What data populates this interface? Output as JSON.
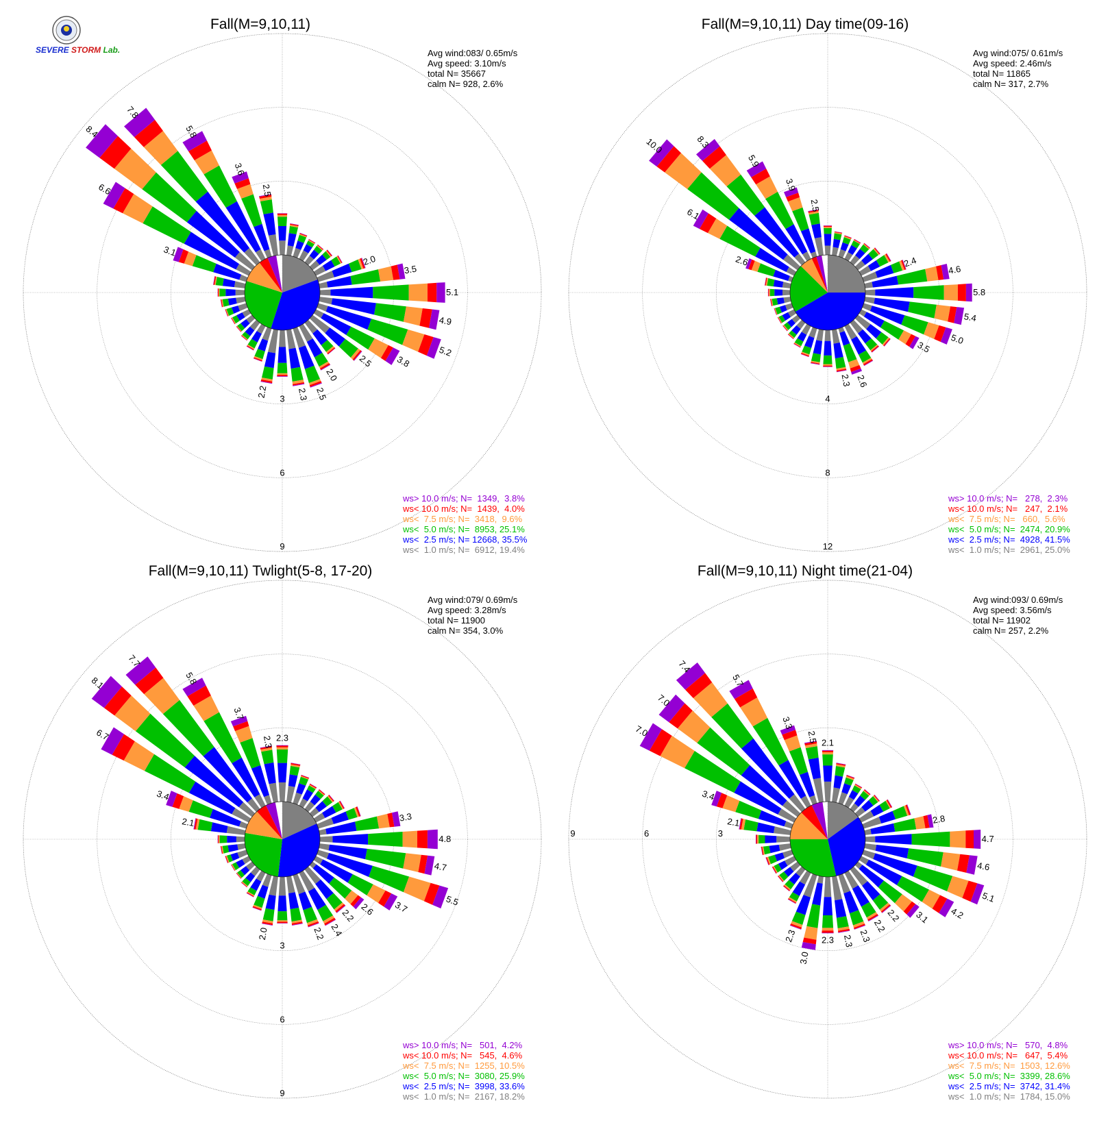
{
  "logo": {
    "word1": "SEVERE",
    "word2": "STORM",
    "word3": "Lab."
  },
  "legend_colors": {
    "gt10": "#9400d3",
    "lt10": "#ff0000",
    "lt7_5": "#ff9a3c",
    "lt5": "#00c000",
    "lt2_5": "#0000ff",
    "lt1": "#808080"
  },
  "chart_data": [
    {
      "type": "windrose",
      "title": "Fall(M=9,10,11)",
      "stats": [
        "Avg wind:083/ 0.65m/s",
        "Avg speed: 3.10m/s",
        "total N=     35667",
        "calm N=    928,   2.6%"
      ],
      "ring_labels": [
        "3",
        "6",
        "9"
      ],
      "ring_values": [
        3,
        6,
        9
      ],
      "legend": [
        {
          "key": "gt10",
          "text": "ws> 10.0 m/s; N=  1349,  3.8%"
        },
        {
          "key": "lt10",
          "text": "ws< 10.0 m/s; N=  1439,  4.0%"
        },
        {
          "key": "lt7_5",
          "text": "ws<  7.5 m/s; N=  3418,  9.6%"
        },
        {
          "key": "lt5",
          "text": "ws<  5.0 m/s; N=  8953, 25.1%"
        },
        {
          "key": "lt2_5",
          "text": "ws<  2.5 m/s; N= 12668, 35.5%"
        },
        {
          "key": "lt1",
          "text": "ws<  1.0 m/s; N=  6912, 19.4%"
        }
      ],
      "pie": [
        19.4,
        35.5,
        25.1,
        9.6,
        4.0,
        3.8
      ],
      "bars": [
        {
          "dir": 90,
          "total": 5.1,
          "label": "5.1"
        },
        {
          "dir": 100,
          "total": 4.9,
          "label": "4.9"
        },
        {
          "dir": 110,
          "total": 5.2,
          "label": "5.2"
        },
        {
          "dir": 120,
          "total": 3.8,
          "label": "3.8"
        },
        {
          "dir": 130,
          "total": 2.5,
          "label": "2.5"
        },
        {
          "dir": 140,
          "total": 1.6
        },
        {
          "dir": 150,
          "total": 2.0,
          "label": "2.0"
        },
        {
          "dir": 160,
          "total": 2.5,
          "label": "2.5"
        },
        {
          "dir": 170,
          "total": 2.3,
          "label": "2.3"
        },
        {
          "dir": 180,
          "total": 1.9
        },
        {
          "dir": 190,
          "total": 2.2,
          "label": "2.2"
        },
        {
          "dir": 200,
          "total": 1.4
        },
        {
          "dir": 210,
          "total": 1.1
        },
        {
          "dir": 220,
          "total": 0.9
        },
        {
          "dir": 230,
          "total": 0.8
        },
        {
          "dir": 240,
          "total": 0.8
        },
        {
          "dir": 250,
          "total": 0.9
        },
        {
          "dir": 260,
          "total": 1.0
        },
        {
          "dir": 270,
          "total": 1.1
        },
        {
          "dir": 280,
          "total": 1.3
        },
        {
          "dir": 290,
          "total": 3.1,
          "label": "3.1"
        },
        {
          "dir": 300,
          "total": 6.6,
          "label": "6.6"
        },
        {
          "dir": 310,
          "total": 8.4,
          "label": "8.4"
        },
        {
          "dir": 320,
          "total": 7.8,
          "label": "7.8"
        },
        {
          "dir": 330,
          "total": 5.8,
          "label": "5.8"
        },
        {
          "dir": 340,
          "total": 3.6,
          "label": "3.6"
        },
        {
          "dir": 350,
          "total": 2.5,
          "label": "2.5"
        },
        {
          "dir": 0,
          "total": 1.7
        },
        {
          "dir": 10,
          "total": 1.3
        },
        {
          "dir": 20,
          "total": 1.0
        },
        {
          "dir": 30,
          "total": 0.9
        },
        {
          "dir": 40,
          "total": 0.9
        },
        {
          "dir": 50,
          "total": 1.0
        },
        {
          "dir": 60,
          "total": 1.2
        },
        {
          "dir": 70,
          "total": 2.0,
          "label": "2.0"
        },
        {
          "dir": 80,
          "total": 3.5,
          "label": "3.5"
        }
      ]
    },
    {
      "type": "windrose",
      "title": "Fall(M=9,10,11) Day time(09-16)",
      "stats": [
        "Avg wind:075/ 0.61m/s",
        "Avg speed: 2.46m/s",
        "total N=     11865",
        "calm N=    317,   2.7%"
      ],
      "ring_labels": [
        "4",
        "8",
        "12"
      ],
      "ring_values": [
        4,
        8,
        12
      ],
      "legend": [
        {
          "key": "gt10",
          "text": "ws> 10.0 m/s; N=   278,  2.3%"
        },
        {
          "key": "lt10",
          "text": "ws< 10.0 m/s; N=   247,  2.1%"
        },
        {
          "key": "lt7_5",
          "text": "ws<  7.5 m/s; N=   660,  5.6%"
        },
        {
          "key": "lt5",
          "text": "ws<  5.0 m/s; N=  2474, 20.9%"
        },
        {
          "key": "lt2_5",
          "text": "ws<  2.5 m/s; N=  4928, 41.5%"
        },
        {
          "key": "lt1",
          "text": "ws<  1.0 m/s; N=  2961, 25.0%"
        }
      ],
      "pie": [
        25.0,
        41.5,
        20.9,
        5.6,
        2.1,
        2.3
      ],
      "bars": [
        {
          "dir": 90,
          "total": 5.8,
          "label": "5.8"
        },
        {
          "dir": 100,
          "total": 5.4,
          "label": "5.4"
        },
        {
          "dir": 110,
          "total": 5.0,
          "label": "5.0"
        },
        {
          "dir": 120,
          "total": 3.5,
          "label": "3.5"
        },
        {
          "dir": 130,
          "total": 2.2
        },
        {
          "dir": 140,
          "total": 2.0
        },
        {
          "dir": 150,
          "total": 2.4
        },
        {
          "dir": 160,
          "total": 2.6,
          "label": "2.6"
        },
        {
          "dir": 170,
          "total": 2.3,
          "label": "2.3"
        },
        {
          "dir": 180,
          "total": 2.0
        },
        {
          "dir": 190,
          "total": 1.9
        },
        {
          "dir": 200,
          "total": 1.6
        },
        {
          "dir": 210,
          "total": 1.3
        },
        {
          "dir": 220,
          "total": 1.1
        },
        {
          "dir": 230,
          "total": 1.0
        },
        {
          "dir": 240,
          "total": 1.0
        },
        {
          "dir": 250,
          "total": 1.0
        },
        {
          "dir": 260,
          "total": 1.1
        },
        {
          "dir": 270,
          "total": 1.2
        },
        {
          "dir": 280,
          "total": 1.4
        },
        {
          "dir": 290,
          "total": 2.6,
          "label": "2.6"
        },
        {
          "dir": 300,
          "total": 6.1,
          "label": "6.1"
        },
        {
          "dir": 310,
          "total": 10.0,
          "label": "10.0"
        },
        {
          "dir": 320,
          "total": 8.3,
          "label": "8.3"
        },
        {
          "dir": 330,
          "total": 5.9,
          "label": "5.9"
        },
        {
          "dir": 340,
          "total": 3.9,
          "label": "3.9"
        },
        {
          "dir": 350,
          "total": 2.5,
          "label": "2.5"
        },
        {
          "dir": 0,
          "total": 1.6
        },
        {
          "dir": 10,
          "total": 1.3
        },
        {
          "dir": 20,
          "total": 1.2
        },
        {
          "dir": 30,
          "total": 1.2
        },
        {
          "dir": 40,
          "total": 1.3
        },
        {
          "dir": 50,
          "total": 1.5
        },
        {
          "dir": 60,
          "total": 1.8
        },
        {
          "dir": 70,
          "total": 2.4,
          "label": "2.4"
        },
        {
          "dir": 80,
          "total": 4.6,
          "label": "4.6"
        }
      ]
    },
    {
      "type": "windrose",
      "title": "Fall(M=9,10,11) Twlight(5-8, 17-20)",
      "stats": [
        "Avg wind:079/ 0.69m/s",
        "Avg speed: 3.28m/s",
        "total N=     11900",
        "calm N=    354,   3.0%"
      ],
      "ring_labels": [
        "3",
        "6",
        "9"
      ],
      "ring_values": [
        3,
        6,
        9
      ],
      "legend": [
        {
          "key": "gt10",
          "text": "ws> 10.0 m/s; N=   501,  4.2%"
        },
        {
          "key": "lt10",
          "text": "ws< 10.0 m/s; N=   545,  4.6%"
        },
        {
          "key": "lt7_5",
          "text": "ws<  7.5 m/s; N=  1255, 10.5%"
        },
        {
          "key": "lt5",
          "text": "ws<  5.0 m/s; N=  3080, 25.9%"
        },
        {
          "key": "lt2_5",
          "text": "ws<  2.5 m/s; N=  3998, 33.6%"
        },
        {
          "key": "lt1",
          "text": "ws<  1.0 m/s; N=  2167, 18.2%"
        }
      ],
      "pie": [
        18.2,
        33.6,
        25.9,
        10.5,
        4.6,
        4.2
      ],
      "bars": [
        {
          "dir": 90,
          "total": 4.8,
          "label": "4.8"
        },
        {
          "dir": 100,
          "total": 4.7,
          "label": "4.7"
        },
        {
          "dir": 110,
          "total": 5.5,
          "label": "5.5"
        },
        {
          "dir": 120,
          "total": 3.7,
          "label": "3.7"
        },
        {
          "dir": 130,
          "total": 2.6,
          "label": "2.6"
        },
        {
          "dir": 140,
          "total": 2.2,
          "label": "2.2"
        },
        {
          "dir": 150,
          "total": 2.4,
          "label": "2.4"
        },
        {
          "dir": 160,
          "total": 2.2,
          "label": "2.2"
        },
        {
          "dir": 170,
          "total": 2.0
        },
        {
          "dir": 180,
          "total": 1.9
        },
        {
          "dir": 190,
          "total": 2.0,
          "label": "2.0"
        },
        {
          "dir": 200,
          "total": 1.5
        },
        {
          "dir": 210,
          "total": 1.1
        },
        {
          "dir": 220,
          "total": 0.9
        },
        {
          "dir": 230,
          "total": 0.8
        },
        {
          "dir": 240,
          "total": 0.8
        },
        {
          "dir": 250,
          "total": 0.9
        },
        {
          "dir": 260,
          "total": 1.0
        },
        {
          "dir": 270,
          "total": 1.1
        },
        {
          "dir": 280,
          "total": 2.1,
          "label": "2.1"
        },
        {
          "dir": 290,
          "total": 3.4,
          "label": "3.4"
        },
        {
          "dir": 300,
          "total": 6.7,
          "label": "6.7"
        },
        {
          "dir": 310,
          "total": 8.1,
          "label": "8.1"
        },
        {
          "dir": 320,
          "total": 7.7,
          "label": "7.7"
        },
        {
          "dir": 330,
          "total": 5.8,
          "label": "5.8"
        },
        {
          "dir": 340,
          "total": 3.7,
          "label": "3.7"
        },
        {
          "dir": 350,
          "total": 2.3,
          "label": "2.3"
        },
        {
          "dir": 0,
          "total": 2.3,
          "label": "2.3"
        },
        {
          "dir": 10,
          "total": 1.6
        },
        {
          "dir": 20,
          "total": 1.2
        },
        {
          "dir": 30,
          "total": 1.0
        },
        {
          "dir": 40,
          "total": 1.0
        },
        {
          "dir": 50,
          "total": 1.1
        },
        {
          "dir": 60,
          "total": 1.3
        },
        {
          "dir": 70,
          "total": 1.8
        },
        {
          "dir": 80,
          "total": 3.3,
          "label": "3.3"
        }
      ]
    },
    {
      "type": "windrose",
      "title": "Fall(M=9,10,11) Night time(21-04)",
      "stats": [
        "Avg wind:093/ 0.69m/s",
        "Avg speed: 3.56m/s",
        "total N=     11902",
        "calm N=    257,   2.2%"
      ],
      "ring_labels": [
        "3",
        "6",
        "9"
      ],
      "ring_values": [
        3,
        6,
        9
      ],
      "ring_labels_side": "left",
      "legend": [
        {
          "key": "gt10",
          "text": "ws> 10.0 m/s; N=   570,  4.8%"
        },
        {
          "key": "lt10",
          "text": "ws< 10.0 m/s; N=   647,  5.4%"
        },
        {
          "key": "lt7_5",
          "text": "ws<  7.5 m/s; N=  1503, 12.6%"
        },
        {
          "key": "lt5",
          "text": "ws<  5.0 m/s; N=  3399, 28.6%"
        },
        {
          "key": "lt2_5",
          "text": "ws<  2.5 m/s; N=  3742, 31.4%"
        },
        {
          "key": "lt1",
          "text": "ws<  1.0 m/s; N=  1784, 15.0%"
        }
      ],
      "pie": [
        15.0,
        31.4,
        28.6,
        12.6,
        5.4,
        4.8
      ],
      "bars": [
        {
          "dir": 90,
          "total": 4.7,
          "label": "4.7"
        },
        {
          "dir": 100,
          "total": 4.6,
          "label": "4.6"
        },
        {
          "dir": 110,
          "total": 5.1,
          "label": "5.1"
        },
        {
          "dir": 120,
          "total": 4.2,
          "label": "4.2"
        },
        {
          "dir": 130,
          "total": 3.1,
          "label": "3.1"
        },
        {
          "dir": 140,
          "total": 2.2,
          "label": "2.2"
        },
        {
          "dir": 150,
          "total": 2.2,
          "label": "2.2"
        },
        {
          "dir": 160,
          "total": 2.3,
          "label": "2.3"
        },
        {
          "dir": 170,
          "total": 2.3,
          "label": "2.3"
        },
        {
          "dir": 180,
          "total": 2.3,
          "label": "2.3"
        },
        {
          "dir": 190,
          "total": 3.0,
          "label": "3.0"
        },
        {
          "dir": 200,
          "total": 2.3,
          "label": "2.3"
        },
        {
          "dir": 210,
          "total": 1.4
        },
        {
          "dir": 220,
          "total": 1.1
        },
        {
          "dir": 230,
          "total": 1.0
        },
        {
          "dir": 240,
          "total": 1.0
        },
        {
          "dir": 250,
          "total": 1.1
        },
        {
          "dir": 260,
          "total": 1.2
        },
        {
          "dir": 270,
          "total": 1.4
        },
        {
          "dir": 280,
          "total": 2.1,
          "label": "2.1"
        },
        {
          "dir": 290,
          "total": 3.4,
          "label": "3.4"
        },
        {
          "dir": 300,
          "total": 7.0,
          "label": "7.0"
        },
        {
          "dir": 310,
          "total": 7.0,
          "label": "7.0"
        },
        {
          "dir": 320,
          "total": 7.4,
          "label": "7.4"
        },
        {
          "dir": 330,
          "total": 5.7,
          "label": "5.7"
        },
        {
          "dir": 340,
          "total": 3.3,
          "label": "3.3"
        },
        {
          "dir": 350,
          "total": 2.5,
          "label": "2.5"
        },
        {
          "dir": 0,
          "total": 2.1,
          "label": "2.1"
        },
        {
          "dir": 10,
          "total": 1.6
        },
        {
          "dir": 20,
          "total": 1.2
        },
        {
          "dir": 30,
          "total": 1.0
        },
        {
          "dir": 40,
          "total": 1.0
        },
        {
          "dir": 50,
          "total": 1.1
        },
        {
          "dir": 60,
          "total": 1.4
        },
        {
          "dir": 70,
          "total": 2.0
        },
        {
          "dir": 80,
          "total": 2.8,
          "label": "2.8"
        }
      ]
    }
  ]
}
